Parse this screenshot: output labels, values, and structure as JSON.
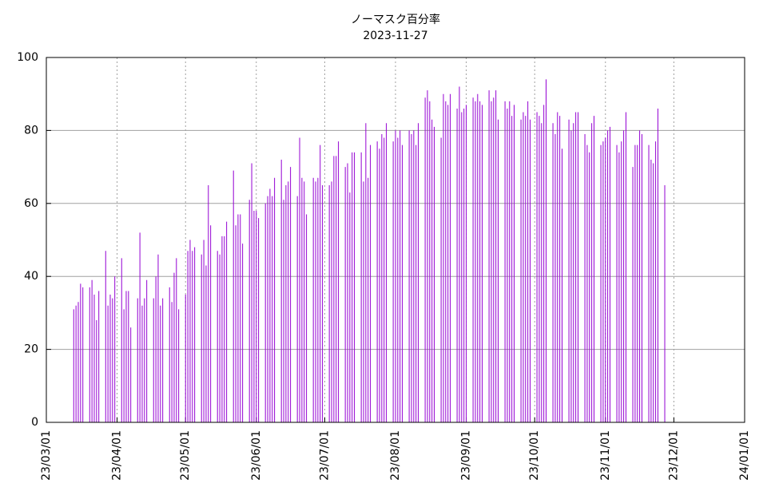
{
  "chart_data": {
    "type": "impulse",
    "title": "ノーマスク百分率",
    "subtitle": "2023-11-27",
    "color": "#9400d3",
    "grid": true,
    "x": [
      "23/03/13",
      "23/03/14",
      "23/03/15",
      "23/03/16",
      "23/03/17",
      "23/03/20",
      "23/03/21",
      "23/03/22",
      "23/03/23",
      "23/03/24",
      "23/03/27",
      "23/03/28",
      "23/03/29",
      "23/03/30",
      "23/03/31",
      "23/04/03",
      "23/04/04",
      "23/04/05",
      "23/04/06",
      "23/04/07",
      "23/04/10",
      "23/04/11",
      "23/04/12",
      "23/04/13",
      "23/04/14",
      "23/04/17",
      "23/04/18",
      "23/04/19",
      "23/04/20",
      "23/04/21",
      "23/04/24",
      "23/04/25",
      "23/04/26",
      "23/04/27",
      "23/04/28",
      "23/05/01",
      "23/05/02",
      "23/05/03",
      "23/05/04",
      "23/05/05",
      "23/05/08",
      "23/05/09",
      "23/05/10",
      "23/05/11",
      "23/05/12",
      "23/05/15",
      "23/05/16",
      "23/05/17",
      "23/05/18",
      "23/05/19",
      "23/05/22",
      "23/05/23",
      "23/05/24",
      "23/05/25",
      "23/05/26",
      "23/05/29",
      "23/05/30",
      "23/05/31",
      "23/06/01",
      "23/06/02",
      "23/06/05",
      "23/06/06",
      "23/06/07",
      "23/06/08",
      "23/06/09",
      "23/06/12",
      "23/06/13",
      "23/06/14",
      "23/06/15",
      "23/06/16",
      "23/06/19",
      "23/06/20",
      "23/06/21",
      "23/06/22",
      "23/06/23",
      "23/06/26",
      "23/06/27",
      "23/06/28",
      "23/06/29",
      "23/06/30",
      "23/07/03",
      "23/07/04",
      "23/07/05",
      "23/07/06",
      "23/07/07",
      "23/07/10",
      "23/07/11",
      "23/07/12",
      "23/07/13",
      "23/07/14",
      "23/07/17",
      "23/07/18",
      "23/07/19",
      "23/07/20",
      "23/07/21",
      "23/07/24",
      "23/07/25",
      "23/07/26",
      "23/07/27",
      "23/07/28",
      "23/07/31",
      "23/08/01",
      "23/08/02",
      "23/08/03",
      "23/08/04",
      "23/08/07",
      "23/08/08",
      "23/08/09",
      "23/08/10",
      "23/08/11",
      "23/08/14",
      "23/08/15",
      "23/08/16",
      "23/08/17",
      "23/08/18",
      "23/08/21",
      "23/08/22",
      "23/08/23",
      "23/08/24",
      "23/08/25",
      "23/08/28",
      "23/08/29",
      "23/08/30",
      "23/08/31",
      "23/09/01",
      "23/09/04",
      "23/09/05",
      "23/09/06",
      "23/09/07",
      "23/09/08",
      "23/09/11",
      "23/09/12",
      "23/09/13",
      "23/09/14",
      "23/09/15",
      "23/09/18",
      "23/09/19",
      "23/09/20",
      "23/09/21",
      "23/09/22",
      "23/09/25",
      "23/09/26",
      "23/09/27",
      "23/09/28",
      "23/09/29",
      "23/10/02",
      "23/10/03",
      "23/10/04",
      "23/10/05",
      "23/10/06",
      "23/10/09",
      "23/10/10",
      "23/10/11",
      "23/10/12",
      "23/10/13",
      "23/10/16",
      "23/10/17",
      "23/10/18",
      "23/10/19",
      "23/10/20",
      "23/10/23",
      "23/10/24",
      "23/10/25",
      "23/10/26",
      "23/10/27",
      "23/10/30",
      "23/10/31",
      "23/11/01",
      "23/11/02",
      "23/11/03",
      "23/11/06",
      "23/11/07",
      "23/11/08",
      "23/11/09",
      "23/11/10",
      "23/11/13",
      "23/11/14",
      "23/11/15",
      "23/11/16",
      "23/11/17",
      "23/11/20",
      "23/11/21",
      "23/11/22",
      "23/11/23",
      "23/11/24",
      "23/11/27"
    ],
    "values": [
      31,
      32,
      33,
      38,
      37,
      37,
      39,
      35,
      28,
      36,
      47,
      32,
      35,
      34,
      40,
      45,
      31,
      36,
      36,
      26,
      34,
      52,
      32,
      34,
      39,
      34,
      40,
      46,
      32,
      34,
      37,
      33,
      41,
      45,
      31,
      35,
      47,
      50,
      47,
      48,
      46,
      50,
      43,
      65,
      54,
      47,
      46,
      51,
      51,
      55,
      69,
      54,
      57,
      57,
      49,
      61,
      71,
      58,
      58,
      56,
      60,
      62,
      64,
      62,
      67,
      72,
      61,
      65,
      66,
      70,
      62,
      78,
      67,
      66,
      57,
      67,
      66,
      67,
      76,
      65,
      65,
      66,
      73,
      73,
      77,
      70,
      71,
      63,
      74,
      74,
      74,
      66,
      82,
      67,
      76,
      77,
      75,
      79,
      78,
      82,
      77,
      80,
      78,
      80,
      76,
      80,
      79,
      80,
      76,
      82,
      89,
      91,
      88,
      83,
      81,
      78,
      90,
      88,
      87,
      90,
      86,
      92,
      85,
      86,
      87,
      89,
      88,
      90,
      88,
      87,
      91,
      88,
      89,
      91,
      83,
      88,
      86,
      88,
      84,
      87,
      83,
      85,
      84,
      88,
      83,
      85,
      84,
      82,
      87,
      94,
      82,
      79,
      85,
      84,
      75,
      83,
      80,
      82,
      85,
      85,
      79,
      76,
      74,
      82,
      84,
      76,
      77,
      78,
      80,
      81,
      76,
      74,
      77,
      80,
      85,
      70,
      76,
      76,
      80,
      79,
      76,
      72,
      71,
      77,
      86,
      65
    ],
    "xlim": [
      "23/03/01",
      "24/01/01"
    ],
    "xticks": [
      "23/03/01",
      "23/04/01",
      "23/05/01",
      "23/06/01",
      "23/07/01",
      "23/08/01",
      "23/09/01",
      "23/10/01",
      "23/11/01",
      "23/12/01",
      "24/01/01"
    ],
    "ylim": [
      0,
      100
    ],
    "yticks": [
      0,
      20,
      40,
      60,
      80,
      100
    ]
  }
}
